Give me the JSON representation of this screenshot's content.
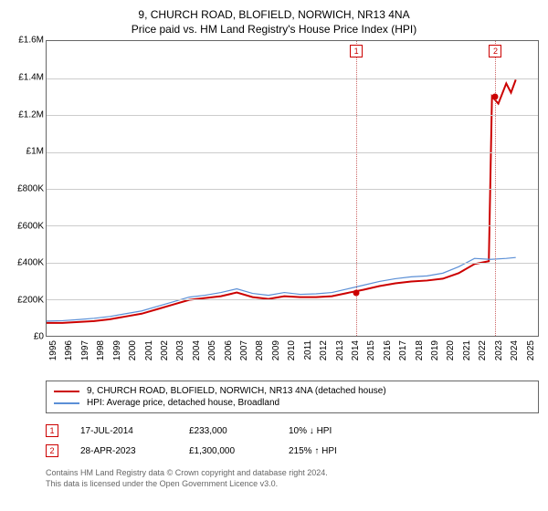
{
  "title": {
    "line1": "9, CHURCH ROAD, BLOFIELD, NORWICH, NR13 4NA",
    "line2": "Price paid vs. HM Land Registry's House Price Index (HPI)"
  },
  "chart": {
    "type": "line",
    "background_color": "#ffffff",
    "border_color": "#666666",
    "grid_color": "#cccccc",
    "ylim": [
      0,
      1600000
    ],
    "ytick_step": 200000,
    "yticks": [
      {
        "v": 0,
        "label": "£0"
      },
      {
        "v": 200000,
        "label": "£200K"
      },
      {
        "v": 400000,
        "label": "£400K"
      },
      {
        "v": 600000,
        "label": "£600K"
      },
      {
        "v": 800000,
        "label": "£800K"
      },
      {
        "v": 1000000,
        "label": "£1M"
      },
      {
        "v": 1200000,
        "label": "£1.2M"
      },
      {
        "v": 1400000,
        "label": "£1.4M"
      },
      {
        "v": 1600000,
        "label": "£1.6M"
      }
    ],
    "xlim": [
      1995,
      2026
    ],
    "xticks": [
      1995,
      1996,
      1997,
      1998,
      1999,
      2000,
      2001,
      2002,
      2003,
      2004,
      2005,
      2006,
      2007,
      2008,
      2009,
      2010,
      2011,
      2012,
      2013,
      2014,
      2015,
      2016,
      2017,
      2018,
      2019,
      2020,
      2021,
      2022,
      2023,
      2024,
      2025
    ],
    "series": [
      {
        "id": "price_paid",
        "label": "9, CHURCH ROAD, BLOFIELD, NORWICH, NR13 4NA (detached house)",
        "color": "#cc0000",
        "line_width": 2,
        "data": [
          [
            1995,
            70000
          ],
          [
            1996,
            70000
          ],
          [
            1997,
            75000
          ],
          [
            1998,
            80000
          ],
          [
            1999,
            90000
          ],
          [
            2000,
            105000
          ],
          [
            2001,
            120000
          ],
          [
            2002,
            145000
          ],
          [
            2003,
            170000
          ],
          [
            2004,
            195000
          ],
          [
            2005,
            205000
          ],
          [
            2006,
            215000
          ],
          [
            2007,
            235000
          ],
          [
            2008,
            210000
          ],
          [
            2009,
            200000
          ],
          [
            2010,
            215000
          ],
          [
            2011,
            210000
          ],
          [
            2012,
            210000
          ],
          [
            2013,
            215000
          ],
          [
            2014,
            233000
          ],
          [
            2015,
            250000
          ],
          [
            2016,
            270000
          ],
          [
            2017,
            285000
          ],
          [
            2018,
            295000
          ],
          [
            2019,
            300000
          ],
          [
            2020,
            310000
          ],
          [
            2021,
            340000
          ],
          [
            2022,
            390000
          ],
          [
            2022.9,
            405000
          ],
          [
            2023.1,
            1300000
          ],
          [
            2023.5,
            1260000
          ],
          [
            2024,
            1370000
          ],
          [
            2024.3,
            1320000
          ],
          [
            2024.6,
            1390000
          ]
        ]
      },
      {
        "id": "hpi",
        "label": "HPI: Average price, detached house, Broadland",
        "color": "#5b8fd6",
        "line_width": 1.2,
        "data": [
          [
            1995,
            80000
          ],
          [
            1996,
            82000
          ],
          [
            1997,
            88000
          ],
          [
            1998,
            95000
          ],
          [
            1999,
            105000
          ],
          [
            2000,
            120000
          ],
          [
            2001,
            135000
          ],
          [
            2002,
            160000
          ],
          [
            2003,
            185000
          ],
          [
            2004,
            210000
          ],
          [
            2005,
            220000
          ],
          [
            2006,
            235000
          ],
          [
            2007,
            255000
          ],
          [
            2008,
            230000
          ],
          [
            2009,
            220000
          ],
          [
            2010,
            235000
          ],
          [
            2011,
            225000
          ],
          [
            2012,
            228000
          ],
          [
            2013,
            235000
          ],
          [
            2014,
            255000
          ],
          [
            2015,
            275000
          ],
          [
            2016,
            295000
          ],
          [
            2017,
            310000
          ],
          [
            2018,
            320000
          ],
          [
            2019,
            325000
          ],
          [
            2020,
            340000
          ],
          [
            2021,
            375000
          ],
          [
            2022,
            420000
          ],
          [
            2023,
            415000
          ],
          [
            2024,
            420000
          ],
          [
            2024.6,
            425000
          ]
        ]
      }
    ],
    "sale_markers": [
      {
        "n": "1",
        "x": 2014.54,
        "y": 233000,
        "color": "#cc0000"
      },
      {
        "n": "2",
        "x": 2023.32,
        "y": 1300000,
        "color": "#cc0000"
      }
    ],
    "marker_dash_color": "#cc6666",
    "marker_box_border": "#cc0000",
    "marker_box_text_color": "#cc0000",
    "label_fontsize": 10,
    "title_fontsize": 12
  },
  "legend": {
    "items": [
      {
        "series": "price_paid"
      },
      {
        "series": "hpi"
      }
    ]
  },
  "events": [
    {
      "n": "1",
      "date": "17-JUL-2014",
      "price": "£233,000",
      "delta": "10% ↓ HPI",
      "box_color": "#cc0000"
    },
    {
      "n": "2",
      "date": "28-APR-2023",
      "price": "£1,300,000",
      "delta": "215% ↑ HPI",
      "box_color": "#cc0000"
    }
  ],
  "footer": {
    "line1": "Contains HM Land Registry data © Crown copyright and database right 2024.",
    "line2": "This data is licensed under the Open Government Licence v3.0."
  }
}
